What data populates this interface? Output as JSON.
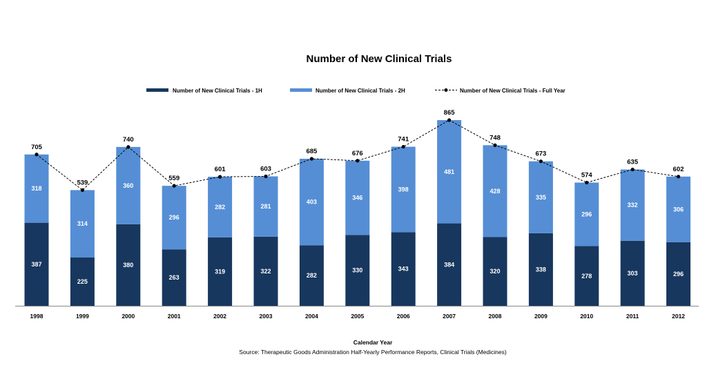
{
  "chart_data": {
    "type": "bar",
    "stacked": true,
    "title": "Number of New Clinical Trials",
    "xlabel": "Calendar Year",
    "source": "Source: Therapeutic Goods Administration Half-Yearly Performance Reports, Clinical Trials (Medicines)",
    "categories": [
      "1998",
      "1999",
      "2000",
      "2001",
      "2002",
      "2003",
      "2004",
      "2005",
      "2006",
      "2007",
      "2008",
      "2009",
      "2010",
      "2011",
      "2012"
    ],
    "series": [
      {
        "name": "Number of New Clinical Trials - 1H",
        "type": "bar",
        "color": "#17375e",
        "values": [
          387,
          225,
          380,
          263,
          319,
          322,
          282,
          330,
          343,
          384,
          320,
          338,
          278,
          303,
          296
        ]
      },
      {
        "name": "Number of New Clinical Trials - 2H",
        "type": "bar",
        "color": "#558ed5",
        "values": [
          318,
          314,
          360,
          296,
          282,
          281,
          403,
          346,
          398,
          481,
          428,
          335,
          296,
          332,
          306
        ]
      },
      {
        "name": "Number of New Clinical Trials - Full Year",
        "type": "line",
        "style": "dashed",
        "color": "#000000",
        "values": [
          705,
          539,
          740,
          559,
          601,
          603,
          685,
          676,
          741,
          865,
          748,
          673,
          574,
          635,
          602
        ]
      }
    ],
    "ylim": [
      0,
      865
    ],
    "grid": false,
    "legend": "top"
  }
}
